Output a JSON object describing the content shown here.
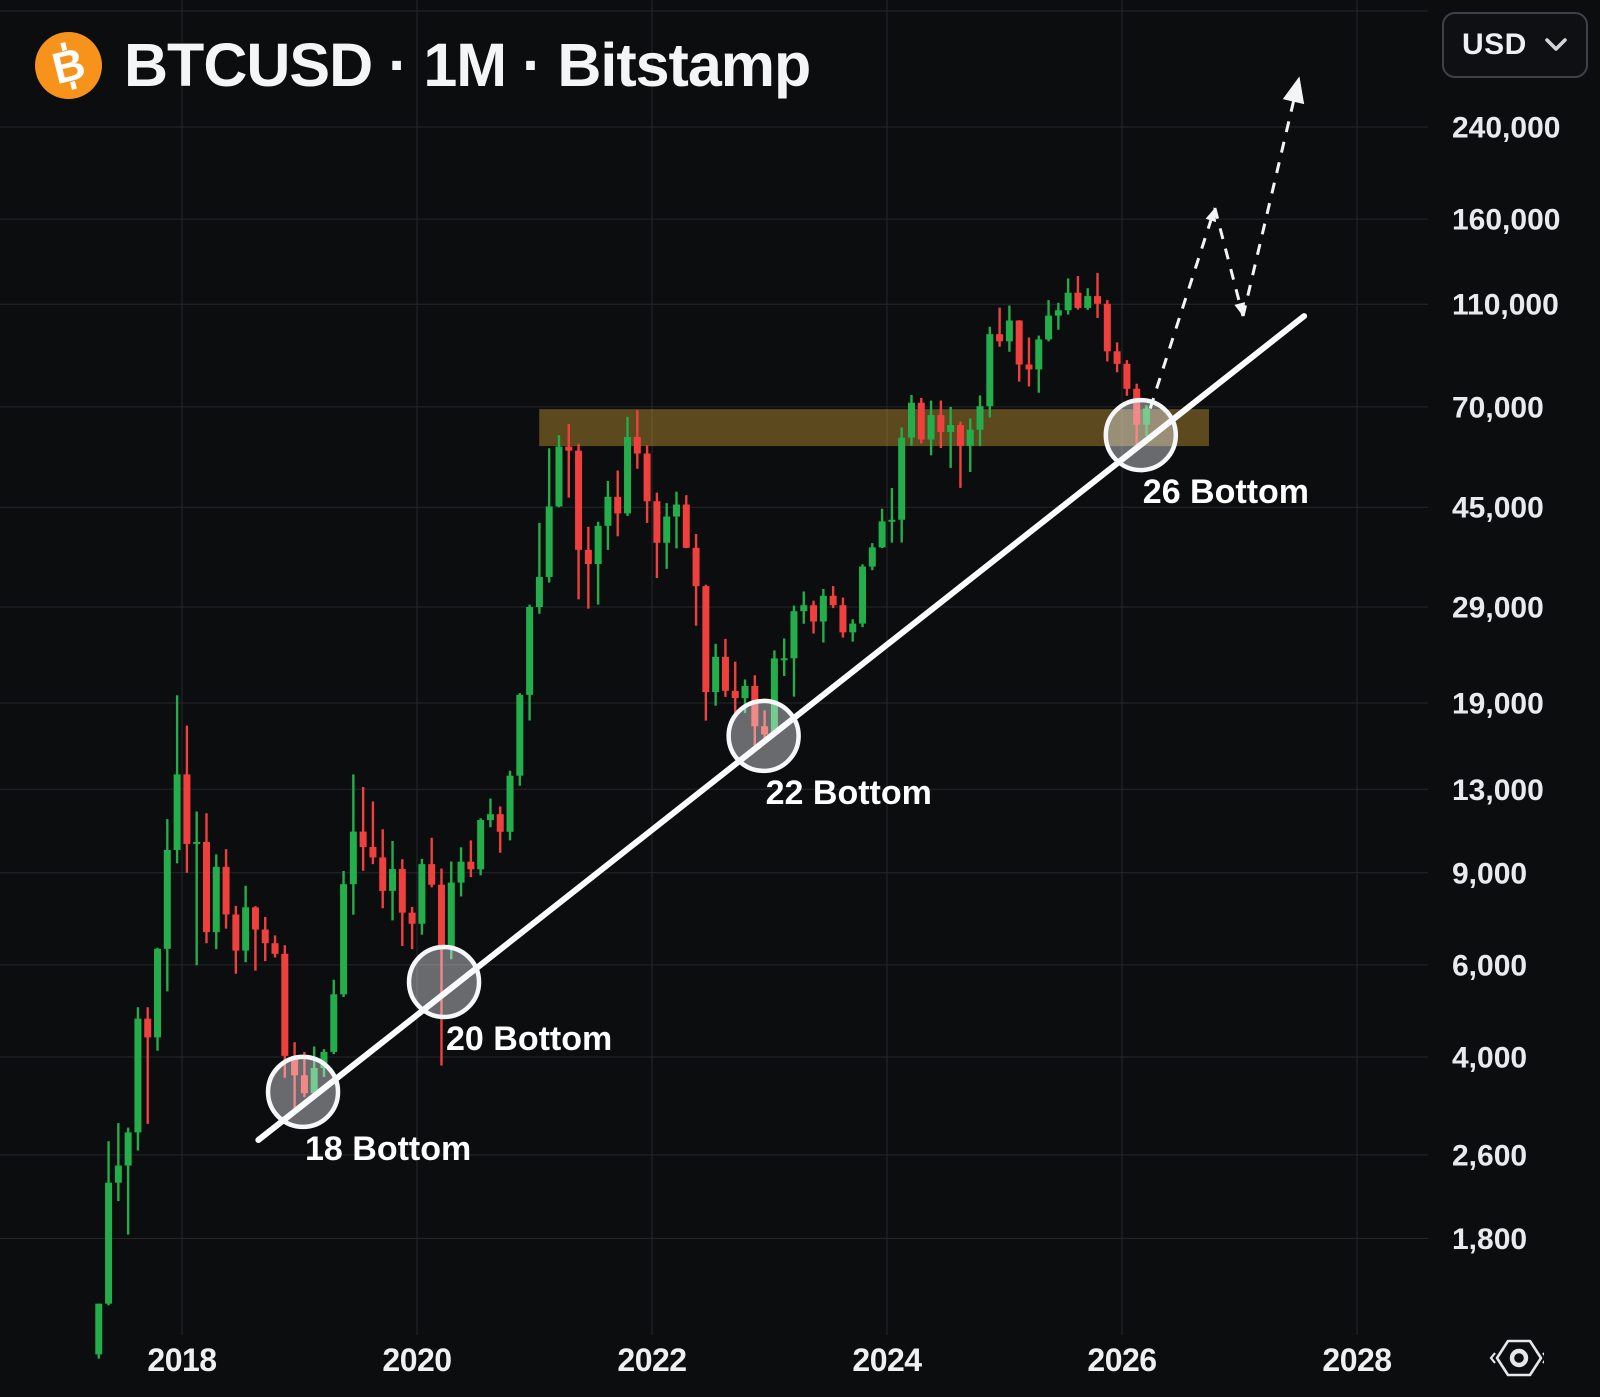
{
  "header": {
    "title": "BTCUSD · 1M · Bitstamp"
  },
  "currency_selector": {
    "value": "USD"
  },
  "chart_data": {
    "type": "candlestick",
    "symbol": "BTCUSD",
    "interval": "1M",
    "exchange": "Bitstamp",
    "price_scale": "logarithmic",
    "currency": "USD",
    "x_ticks": [
      2018,
      2020,
      2022,
      2024,
      2026,
      2028
    ],
    "y_ticks": [
      240000,
      160000,
      110000,
      70000,
      45000,
      29000,
      19000,
      13000,
      9000,
      6000,
      4000,
      2600,
      1800
    ],
    "extra_gridline_prices": [
      400000
    ],
    "colors": {
      "background": "#0c0d0f",
      "grid": "#25272b",
      "up": "#23ad4b",
      "down": "#ef403e",
      "trendline": "#fdfdfe",
      "zone_fill": "rgba(216,164,52,0.40)",
      "circle_stroke": "#f6f7f9",
      "circle_fill": "rgba(245,247,250,0.40)",
      "axis_text": "#e8eaed",
      "annotation_text": "#ffffff",
      "bitcoin_orange": "#f7931a"
    },
    "candles": [
      [
        2017,
        4,
        1080,
        1350,
        1060,
        1350
      ],
      [
        2017,
        5,
        1350,
        2760,
        1340,
        2300
      ],
      [
        2017,
        6,
        2300,
        2990,
        2120,
        2480
      ],
      [
        2017,
        7,
        2480,
        2930,
        1830,
        2870
      ],
      [
        2017,
        8,
        2870,
        4980,
        2650,
        4735
      ],
      [
        2017,
        9,
        4735,
        4980,
        2980,
        4360
      ],
      [
        2017,
        10,
        4360,
        6470,
        4110,
        6440
      ],
      [
        2017,
        11,
        6440,
        11400,
        5340,
        9950
      ],
      [
        2017,
        12,
        9950,
        19660,
        9380,
        13880
      ],
      [
        2018,
        1,
        13880,
        17200,
        9000,
        10220
      ],
      [
        2018,
        2,
        10220,
        11790,
        5990,
        10310
      ],
      [
        2018,
        3,
        10310,
        11700,
        6600,
        6930
      ],
      [
        2018,
        4,
        6930,
        9760,
        6430,
        9240
      ],
      [
        2018,
        5,
        9240,
        9990,
        7040,
        7490
      ],
      [
        2018,
        6,
        7490,
        7780,
        5770,
        6390
      ],
      [
        2018,
        7,
        6390,
        8500,
        6070,
        7730
      ],
      [
        2018,
        8,
        7730,
        7770,
        5850,
        7010
      ],
      [
        2018,
        9,
        7010,
        7410,
        6100,
        6600
      ],
      [
        2018,
        10,
        6600,
        6830,
        6200,
        6300
      ],
      [
        2018,
        11,
        6300,
        6540,
        3650,
        4020
      ],
      [
        2018,
        12,
        4020,
        4270,
        3150,
        3690
      ],
      [
        2019,
        1,
        3690,
        4090,
        3350,
        3410
      ],
      [
        2019,
        2,
        3410,
        4190,
        3330,
        3810
      ],
      [
        2019,
        3,
        3810,
        4140,
        3660,
        4090
      ],
      [
        2019,
        4,
        4090,
        5620,
        4050,
        5270
      ],
      [
        2019,
        5,
        5270,
        9070,
        5210,
        8560
      ],
      [
        2019,
        6,
        8560,
        13880,
        7480,
        10790
      ],
      [
        2019,
        7,
        10790,
        13130,
        9080,
        10080
      ],
      [
        2019,
        8,
        10080,
        12320,
        9350,
        9630
      ],
      [
        2019,
        9,
        9630,
        10900,
        7700,
        8310
      ],
      [
        2019,
        10,
        8310,
        10350,
        7300,
        9150
      ],
      [
        2019,
        11,
        9150,
        9550,
        6520,
        7550
      ],
      [
        2019,
        12,
        7550,
        7740,
        6430,
        7190
      ],
      [
        2020,
        1,
        7190,
        9570,
        6850,
        9350
      ],
      [
        2020,
        2,
        9350,
        10500,
        8440,
        8540
      ],
      [
        2020,
        3,
        8540,
        9170,
        3850,
        6420
      ],
      [
        2020,
        4,
        6420,
        9460,
        6150,
        8620
      ],
      [
        2020,
        5,
        8620,
        10070,
        8110,
        9450
      ],
      [
        2020,
        6,
        9450,
        10380,
        8830,
        9140
      ],
      [
        2020,
        7,
        9140,
        11440,
        8900,
        11350
      ],
      [
        2020,
        8,
        11350,
        12480,
        11000,
        11650
      ],
      [
        2020,
        9,
        11650,
        12050,
        9830,
        10780
      ],
      [
        2020,
        10,
        10780,
        14100,
        10380,
        13800
      ],
      [
        2020,
        11,
        13800,
        19850,
        13200,
        19700
      ],
      [
        2020,
        12,
        19700,
        29300,
        17600,
        29000
      ],
      [
        2021,
        1,
        29000,
        42000,
        28150,
        33100
      ],
      [
        2021,
        2,
        33100,
        58350,
        32300,
        45160
      ],
      [
        2021,
        3,
        45160,
        61800,
        45000,
        58780
      ],
      [
        2021,
        4,
        58780,
        64900,
        46930,
        57720
      ],
      [
        2021,
        5,
        57720,
        59500,
        30000,
        37300
      ],
      [
        2021,
        6,
        37300,
        41300,
        28800,
        35040
      ],
      [
        2021,
        7,
        35040,
        42200,
        29300,
        41460
      ],
      [
        2021,
        8,
        41460,
        50500,
        37300,
        47100
      ],
      [
        2021,
        9,
        47100,
        52900,
        39600,
        43790
      ],
      [
        2021,
        10,
        43790,
        67000,
        43300,
        61300
      ],
      [
        2021,
        11,
        61300,
        69000,
        53300,
        57000
      ],
      [
        2021,
        12,
        57000,
        59100,
        42000,
        46200
      ],
      [
        2022,
        1,
        46200,
        47990,
        32950,
        38480
      ],
      [
        2022,
        2,
        38480,
        45820,
        34300,
        43190
      ],
      [
        2022,
        3,
        43190,
        48200,
        37550,
        45540
      ],
      [
        2022,
        4,
        45540,
        47450,
        37580,
        37630
      ],
      [
        2022,
        5,
        37630,
        40000,
        26700,
        31790
      ],
      [
        2022,
        6,
        31790,
        31980,
        17590,
        19940
      ],
      [
        2022,
        7,
        19940,
        24670,
        18780,
        23290
      ],
      [
        2022,
        8,
        23290,
        25200,
        19520,
        20050
      ],
      [
        2022,
        9,
        20050,
        22800,
        18120,
        19420
      ],
      [
        2022,
        10,
        19420,
        21080,
        18190,
        20490
      ],
      [
        2022,
        11,
        20490,
        21480,
        15480,
        17160
      ],
      [
        2022,
        12,
        17160,
        18390,
        16260,
        16540
      ],
      [
        2023,
        1,
        16540,
        23960,
        16490,
        23130
      ],
      [
        2023,
        2,
        23130,
        25250,
        21400,
        23140
      ],
      [
        2023,
        3,
        23140,
        29180,
        19550,
        28470
      ],
      [
        2023,
        4,
        28470,
        31050,
        26940,
        29230
      ],
      [
        2023,
        5,
        29230,
        29820,
        25800,
        27210
      ],
      [
        2023,
        6,
        27210,
        31400,
        24800,
        30470
      ],
      [
        2023,
        7,
        30470,
        31800,
        28860,
        29230
      ],
      [
        2023,
        8,
        29230,
        30230,
        25350,
        25940
      ],
      [
        2023,
        9,
        25940,
        27480,
        24900,
        26960
      ],
      [
        2023,
        10,
        26960,
        35000,
        26540,
        34650
      ],
      [
        2023,
        11,
        34650,
        38420,
        34100,
        37710
      ],
      [
        2023,
        12,
        37710,
        44700,
        37600,
        42280
      ],
      [
        2024,
        1,
        42280,
        48970,
        38500,
        42580
      ],
      [
        2024,
        2,
        42580,
        63930,
        38520,
        61130
      ],
      [
        2024,
        3,
        61130,
        73790,
        59000,
        71280
      ],
      [
        2024,
        4,
        71280,
        72800,
        59600,
        60640
      ],
      [
        2024,
        5,
        60640,
        71950,
        56550,
        67530
      ],
      [
        2024,
        6,
        67530,
        71980,
        58400,
        62680
      ],
      [
        2024,
        7,
        62680,
        70000,
        53500,
        64620
      ],
      [
        2024,
        8,
        64620,
        65600,
        49000,
        58970
      ],
      [
        2024,
        9,
        58970,
        66500,
        52550,
        63330
      ],
      [
        2024,
        10,
        63330,
        73600,
        58900,
        70220
      ],
      [
        2024,
        11,
        70220,
        99600,
        66800,
        96400
      ],
      [
        2024,
        12,
        96400,
        108350,
        91200,
        93430
      ],
      [
        2025,
        1,
        93430,
        109350,
        89200,
        102400
      ],
      [
        2025,
        2,
        102400,
        102500,
        78250,
        84350
      ],
      [
        2025,
        3,
        84350,
        95000,
        76600,
        82550
      ],
      [
        2025,
        4,
        82550,
        95800,
        74500,
        94200
      ],
      [
        2025,
        5,
        94200,
        112000,
        93400,
        104600
      ],
      [
        2025,
        6,
        104600,
        110700,
        98300,
        107100
      ],
      [
        2025,
        7,
        107100,
        123200,
        105100,
        115700
      ],
      [
        2025,
        8,
        115700,
        124500,
        107400,
        108200
      ],
      [
        2025,
        9,
        108200,
        118000,
        107300,
        114000
      ],
      [
        2025,
        10,
        114000,
        126200,
        103500,
        110200
      ],
      [
        2025,
        11,
        110200,
        112000,
        85500,
        89400
      ],
      [
        2025,
        12,
        89400,
        93000,
        81500,
        84600
      ],
      [
        2026,
        1,
        84600,
        86000,
        73500,
        75800
      ],
      [
        2026,
        2,
        75800,
        77500,
        58500,
        64700
      ],
      [
        2026,
        3,
        64700,
        70500,
        61500,
        69500
      ]
    ],
    "trendline": {
      "from": {
        "t": 2018.65,
        "price": 2775
      },
      "to": {
        "t": 2027.55,
        "price": 104400
      }
    },
    "resistance_zone": {
      "t_start": 2021.04,
      "t_end": 2026.74,
      "price_top": 69300,
      "price_bottom": 58900
    },
    "projection_arrows": [
      {
        "from": {
          "t": 2026.24,
          "price": 69500
        },
        "to": {
          "t": 2026.79,
          "price": 168000
        },
        "head": "small"
      },
      {
        "from": {
          "t": 2026.79,
          "price": 168000
        },
        "to": {
          "t": 2027.03,
          "price": 104400
        },
        "head": "small"
      },
      {
        "from": {
          "t": 2027.03,
          "price": 104400
        },
        "to": {
          "t": 2027.51,
          "price": 300000
        },
        "head": "large"
      }
    ],
    "bottom_markers": [
      {
        "label": "18 Bottom",
        "t": 2019.03,
        "price": 3430
      },
      {
        "label": "20 Bottom",
        "t": 2020.23,
        "price": 5565
      },
      {
        "label": "22 Bottom",
        "t": 2022.95,
        "price": 16440
      },
      {
        "label": "26 Bottom",
        "t": 2026.16,
        "price": 61820
      }
    ]
  }
}
